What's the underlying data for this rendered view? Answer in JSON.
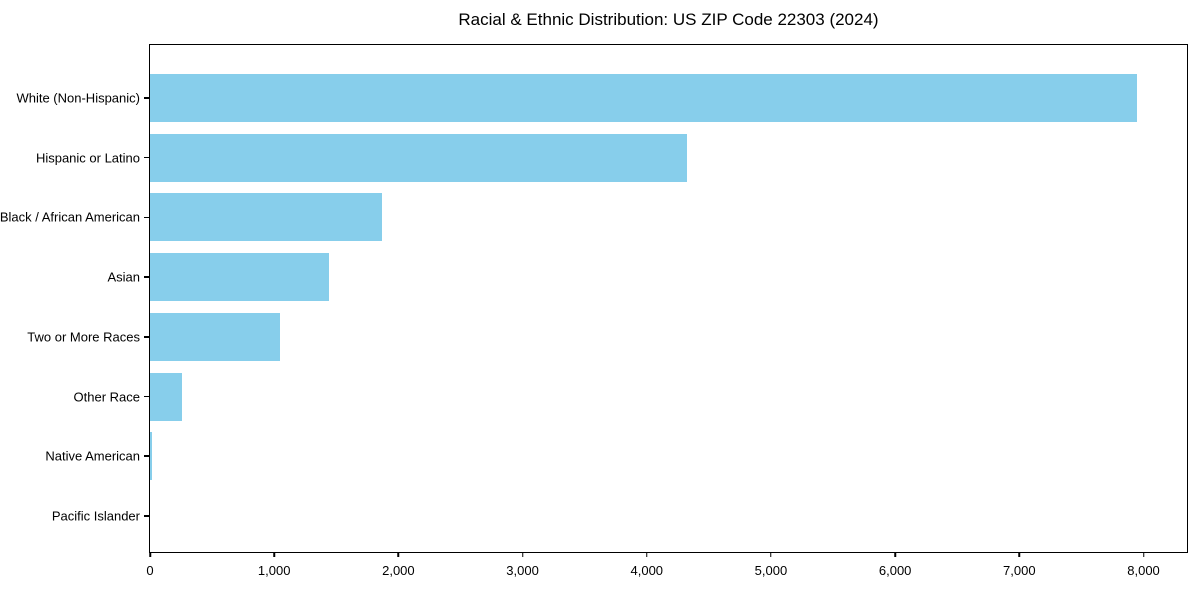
{
  "chart_data": {
    "type": "bar",
    "orientation": "horizontal",
    "title": "Racial & Ethnic Distribution: US ZIP Code 22303 (2024)",
    "categories": [
      "White (Non-Hispanic)",
      "Hispanic or Latino",
      "Black / African American",
      "Asian",
      "Two or More Races",
      "Other Race",
      "Native American",
      "Pacific Islander"
    ],
    "values": [
      7950,
      4320,
      1870,
      1440,
      1050,
      260,
      20,
      0
    ],
    "xlabel": "",
    "ylabel": "",
    "xlim": [
      0,
      8350
    ],
    "xticks": [
      0,
      1000,
      2000,
      3000,
      4000,
      5000,
      6000,
      7000,
      8000
    ],
    "xtick_labels": [
      "0",
      "1,000",
      "2,000",
      "3,000",
      "4,000",
      "5,000",
      "6,000",
      "7,000",
      "8,000"
    ],
    "bar_color": "#87CEEB",
    "axis_color": "#000000",
    "background_color": "#ffffff",
    "grid": false,
    "legend": null
  }
}
